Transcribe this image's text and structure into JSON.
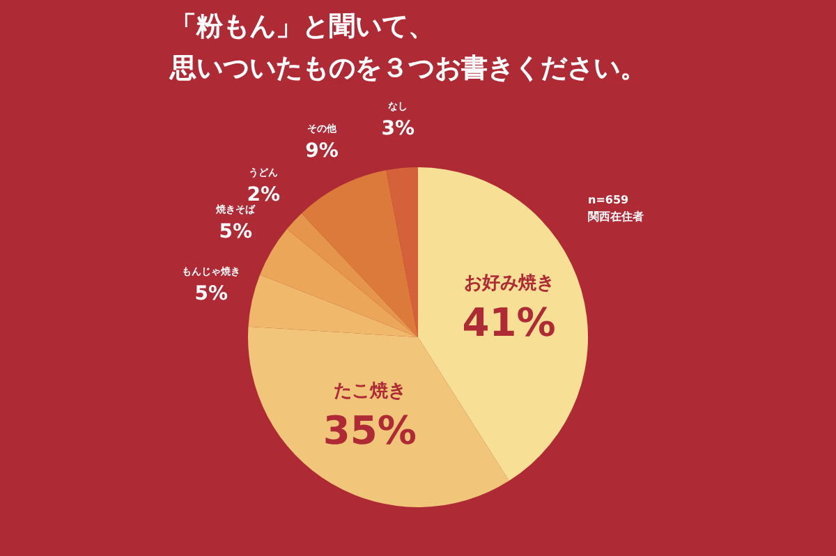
{
  "chart_data": {
    "type": "pie",
    "title": "「粉もん」と聞いて、思いついたものを３つお書きください。",
    "categories": [
      "お好み焼き",
      "たこ焼き",
      "もんじゃ焼き",
      "焼きそば",
      "うどん",
      "その他",
      "なし"
    ],
    "values": [
      41,
      35,
      5,
      5,
      2,
      9,
      3
    ],
    "colors": [
      "#f8df96",
      "#f1c67a",
      "#f0b86a",
      "#eca65a",
      "#e6964c",
      "#dc7a3c",
      "#d4613a"
    ],
    "value_labels": [
      "41%",
      "35%",
      "5%",
      "5%",
      "2%",
      "9%",
      "3%"
    ],
    "annotations": [
      "n=659",
      "関西在住者"
    ]
  }
}
